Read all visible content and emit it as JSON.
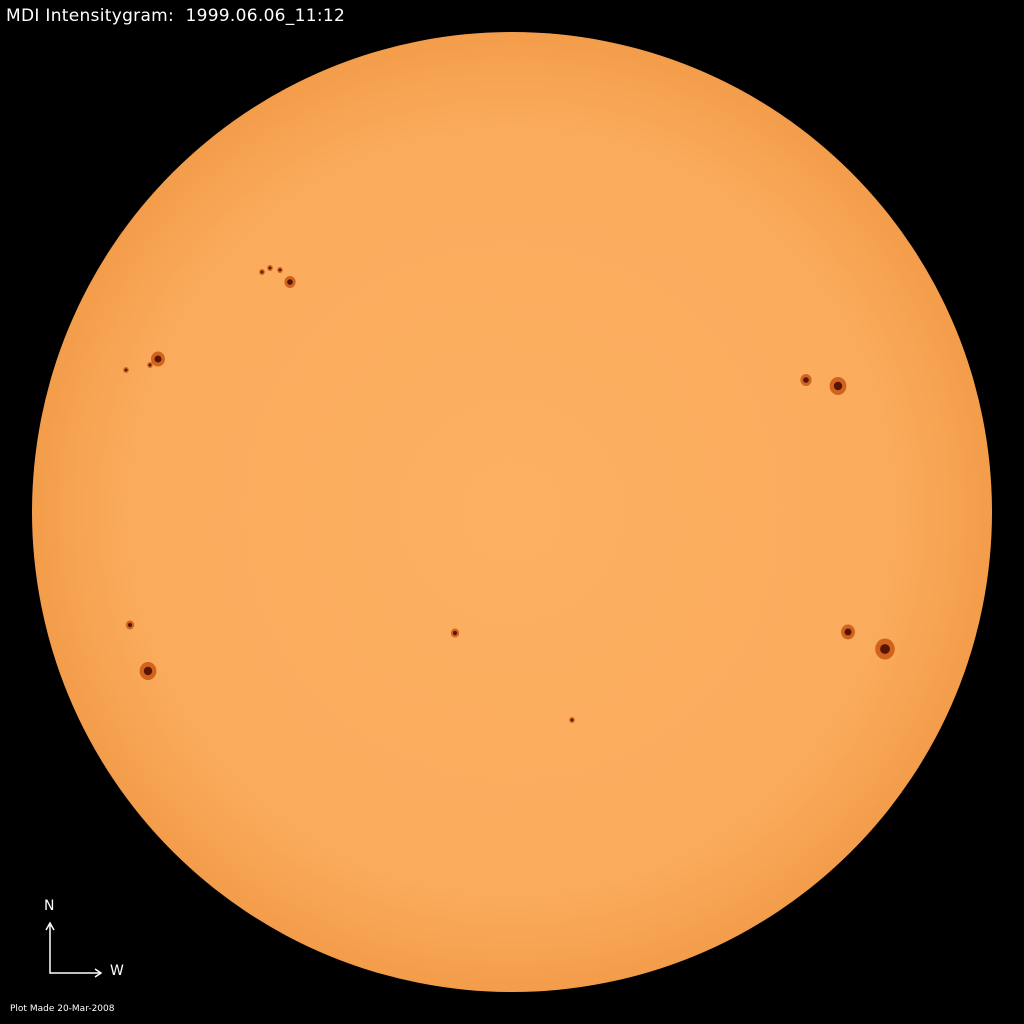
{
  "title": "MDI Intensitygram:  1999.06.06_11:12",
  "compass": {
    "north": "N",
    "west": "W"
  },
  "footer": "Plot Made 20-Mar-2008",
  "colors": {
    "background": "#000000",
    "disk": "#fbad5e",
    "limb": "#f19a45",
    "sunspot": "#8a2a08",
    "umbra": "#3a0a00",
    "text": "#ffffff"
  }
}
